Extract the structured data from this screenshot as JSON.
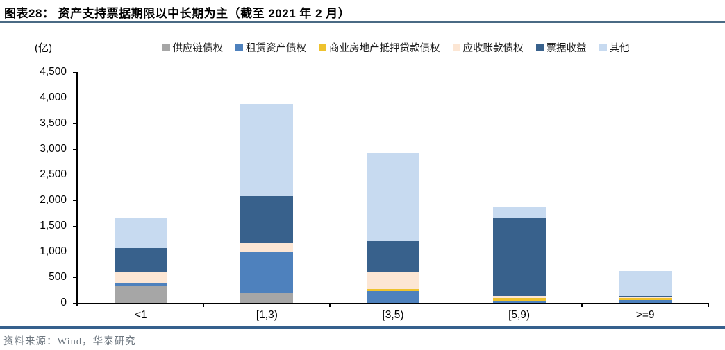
{
  "header": {
    "title": "图表28：  资产支持票据期限以中长期为主（截至 2021 年 2 月）"
  },
  "footer": {
    "source": "资料来源：Wind，华泰研究"
  },
  "colors": {
    "title_rule": "#4a6a84",
    "footer_rule": "#35608d",
    "axis": "#000000",
    "footer_text": "#6e7780"
  },
  "chart_data": {
    "type": "bar",
    "stacked": true,
    "title": "资产支持票据期限以中长期为主（截至 2021 年 2 月）",
    "unit_label": "(亿)",
    "xlabel": "",
    "ylabel": "亿",
    "ylim": [
      0,
      4500
    ],
    "y_tick_step": 500,
    "y_ticks": [
      "0",
      "500",
      "1,000",
      "1,500",
      "2,000",
      "2,500",
      "3,000",
      "3,500",
      "4,000",
      "4,500"
    ],
    "grid": false,
    "legend_position": "top",
    "categories": [
      "<1",
      "[1,3)",
      "[3,5)",
      "[5,9)",
      ">=9"
    ],
    "series": [
      {
        "name": "供应链债权",
        "color": "#a6a6a6",
        "values": [
          320,
          190,
          0,
          0,
          0
        ]
      },
      {
        "name": "租赁资产债权",
        "color": "#4e81bd",
        "values": [
          75,
          805,
          230,
          45,
          50
        ]
      },
      {
        "name": "商业房地产抵押贷款债权",
        "color": "#eec22e",
        "values": [
          0,
          0,
          45,
          45,
          45
        ]
      },
      {
        "name": "应收账款债权",
        "color": "#fce6d4",
        "values": [
          195,
          180,
          340,
          45,
          25
        ]
      },
      {
        "name": "票据收益",
        "color": "#38618c",
        "values": [
          480,
          905,
          585,
          1515,
          10
        ]
      },
      {
        "name": "其他",
        "color": "#c7daf0",
        "values": [
          580,
          1800,
          1715,
          225,
          490
        ]
      }
    ],
    "totals": [
      1650,
      3880,
      2915,
      1875,
      620
    ]
  }
}
